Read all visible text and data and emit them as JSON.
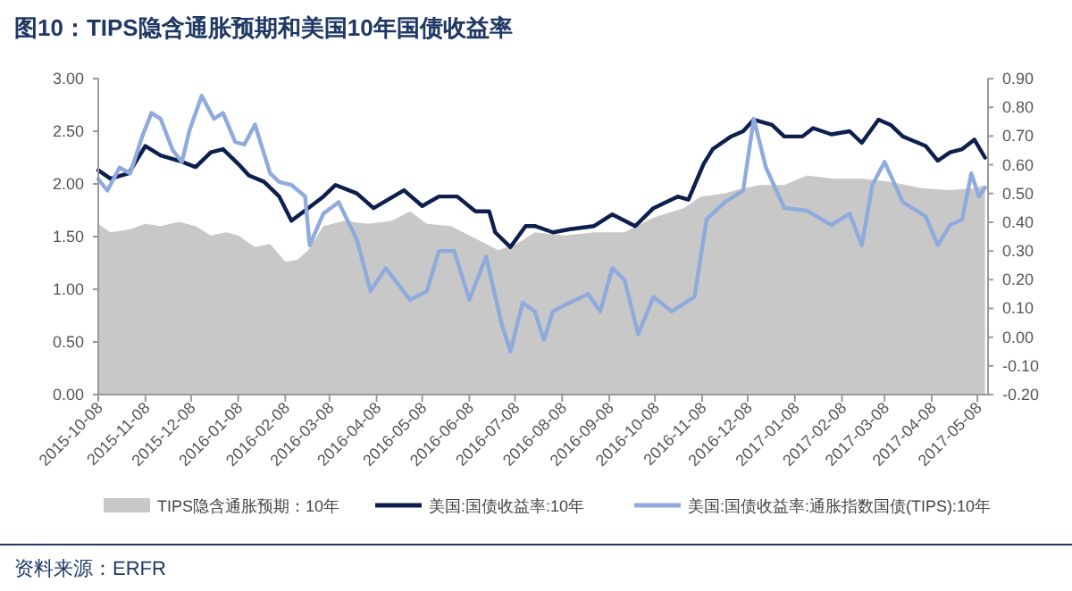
{
  "chart_data": {
    "type": "line",
    "title": "图10：TIPS隐含通胀预期和美国10年国债收益率",
    "xlim": [
      "2015-10-08",
      "2017-05-15"
    ],
    "xticks": [
      "2015-10-08",
      "2015-11-08",
      "2015-12-08",
      "2016-01-08",
      "2016-02-08",
      "2016-03-08",
      "2016-04-08",
      "2016-05-08",
      "2016-06-08",
      "2016-07-08",
      "2016-08-08",
      "2016-09-08",
      "2016-10-08",
      "2016-11-08",
      "2016-12-08",
      "2017-01-08",
      "2017-02-08",
      "2017-03-08",
      "2017-04-08",
      "2017-05-08"
    ],
    "ylim": [
      0,
      3
    ],
    "yticks": [
      {
        "value": 0,
        "label": "0.00"
      },
      {
        "value": 0.5,
        "label": "0.50"
      },
      {
        "value": 1,
        "label": "1.00"
      },
      {
        "value": 1.5,
        "label": "1.50"
      },
      {
        "value": 2,
        "label": "2.00"
      },
      {
        "value": 2.5,
        "label": "2.50"
      },
      {
        "value": 3,
        "label": "3.00"
      }
    ],
    "y2lim": [
      -0.2,
      0.9
    ],
    "y2ticks": [
      {
        "value": -0.2,
        "label": "-0.20"
      },
      {
        "value": -0.1,
        "label": "-0.10"
      },
      {
        "value": 0,
        "label": "0.00"
      },
      {
        "value": 0.1,
        "label": "0.10"
      },
      {
        "value": 0.2,
        "label": "0.20"
      },
      {
        "value": 0.3,
        "label": "0.30"
      },
      {
        "value": 0.4,
        "label": "0.40"
      },
      {
        "value": 0.5,
        "label": "0.50"
      },
      {
        "value": 0.6,
        "label": "0.60"
      },
      {
        "value": 0.7,
        "label": "0.70"
      },
      {
        "value": 0.8,
        "label": "0.80"
      },
      {
        "value": 0.9,
        "label": "0.90"
      }
    ],
    "legend": "bottom",
    "grid": false,
    "series": [
      {
        "name": "TIPS隐含通胀预期：10年",
        "type": "area",
        "color": "#c8c8c8",
        "x": [
          "2015-10-08",
          "2015-10-16",
          "2015-10-29",
          "2015-11-08",
          "2015-11-18",
          "2015-11-30",
          "2015-12-11",
          "2015-12-21",
          "2015-12-31",
          "2016-01-08",
          "2016-01-19",
          "2016-01-29",
          "2016-02-08",
          "2016-02-16",
          "2016-02-23",
          "2016-03-04",
          "2016-03-18",
          "2016-04-02",
          "2016-04-18",
          "2016-04-30",
          "2016-05-11",
          "2016-05-27",
          "2016-06-12",
          "2016-06-27",
          "2016-07-09",
          "2016-07-21",
          "2016-08-10",
          "2016-08-29",
          "2016-09-18",
          "2016-10-07",
          "2016-10-27",
          "2016-11-07",
          "2016-11-23",
          "2016-12-05",
          "2016-12-16",
          "2017-01-01",
          "2017-01-16",
          "2017-02-01",
          "2017-02-21",
          "2017-03-12",
          "2017-04-01",
          "2017-04-20",
          "2017-05-06",
          "2017-05-13"
        ],
        "values": [
          1.62,
          1.54,
          1.57,
          1.62,
          1.6,
          1.64,
          1.6,
          1.51,
          1.54,
          1.51,
          1.4,
          1.43,
          1.26,
          1.28,
          1.37,
          1.6,
          1.65,
          1.62,
          1.65,
          1.74,
          1.62,
          1.6,
          1.48,
          1.37,
          1.43,
          1.54,
          1.51,
          1.54,
          1.54,
          1.68,
          1.77,
          1.88,
          1.91,
          1.96,
          1.99,
          1.99,
          2.08,
          2.05,
          2.05,
          2.02,
          1.96,
          1.94,
          1.96,
          1.99
        ]
      },
      {
        "name": "美国:国债收益率:10年",
        "color": "#0d1f4f",
        "x": [
          "2015-10-08",
          "2015-10-16",
          "2015-10-28",
          "2015-11-08",
          "2015-11-18",
          "2015-11-30",
          "2015-12-11",
          "2015-12-21",
          "2015-12-29",
          "2016-01-08",
          "2016-01-15",
          "2016-01-25",
          "2016-02-04",
          "2016-02-12",
          "2016-02-23",
          "2016-03-04",
          "2016-03-12",
          "2016-03-26",
          "2016-04-06",
          "2016-04-26",
          "2016-05-08",
          "2016-05-19",
          "2016-05-31",
          "2016-06-12",
          "2016-06-21",
          "2016-06-25",
          "2016-07-05",
          "2016-07-15",
          "2016-07-21",
          "2016-08-02",
          "2016-08-13",
          "2016-08-29",
          "2016-09-10",
          "2016-09-25",
          "2016-10-07",
          "2016-10-23",
          "2016-10-30",
          "2016-11-09",
          "2016-11-15",
          "2016-11-27",
          "2016-12-05",
          "2016-12-12",
          "2016-12-24",
          "2017-01-01",
          "2017-01-13",
          "2017-01-20",
          "2017-02-01",
          "2017-02-13",
          "2017-02-21",
          "2017-03-04",
          "2017-03-12",
          "2017-03-20",
          "2017-04-04",
          "2017-04-12",
          "2017-04-20",
          "2017-04-28",
          "2017-05-06",
          "2017-05-13"
        ],
        "values": [
          2.13,
          2.05,
          2.1,
          2.36,
          2.27,
          2.22,
          2.16,
          2.3,
          2.33,
          2.19,
          2.08,
          2.02,
          1.88,
          1.65,
          1.77,
          1.88,
          1.99,
          1.91,
          1.77,
          1.94,
          1.79,
          1.88,
          1.88,
          1.74,
          1.74,
          1.54,
          1.4,
          1.6,
          1.6,
          1.54,
          1.57,
          1.6,
          1.71,
          1.6,
          1.77,
          1.88,
          1.85,
          2.19,
          2.33,
          2.45,
          2.5,
          2.61,
          2.56,
          2.45,
          2.45,
          2.53,
          2.47,
          2.5,
          2.39,
          2.61,
          2.56,
          2.45,
          2.36,
          2.22,
          2.3,
          2.33,
          2.42,
          2.25
        ]
      },
      {
        "name": "美国:国债收益率:通胀指数国债(TIPS):10年",
        "axis": "y2",
        "color": "#8faadc",
        "x": [
          "2015-10-08",
          "2015-10-14",
          "2015-10-22",
          "2015-10-29",
          "2015-11-06",
          "2015-11-12",
          "2015-11-18",
          "2015-11-26",
          "2015-12-02",
          "2015-12-07",
          "2015-12-15",
          "2015-12-23",
          "2015-12-29",
          "2016-01-06",
          "2016-01-12",
          "2016-01-19",
          "2016-01-29",
          "2016-02-04",
          "2016-02-12",
          "2016-02-21",
          "2016-02-24",
          "2016-03-04",
          "2016-03-14",
          "2016-03-26",
          "2016-04-04",
          "2016-04-14",
          "2016-04-30",
          "2016-05-11",
          "2016-05-19",
          "2016-05-29",
          "2016-06-08",
          "2016-06-19",
          "2016-06-29",
          "2016-07-05",
          "2016-07-13",
          "2016-07-21",
          "2016-07-27",
          "2016-08-02",
          "2016-08-13",
          "2016-08-25",
          "2016-09-02",
          "2016-09-10",
          "2016-09-18",
          "2016-09-27",
          "2016-10-07",
          "2016-10-19",
          "2016-11-03",
          "2016-11-11",
          "2016-11-23",
          "2016-12-05",
          "2016-12-12",
          "2016-12-20",
          "2017-01-01",
          "2017-01-16",
          "2017-02-01",
          "2017-02-13",
          "2017-02-21",
          "2017-02-28",
          "2017-03-08",
          "2017-03-20",
          "2017-04-04",
          "2017-04-12",
          "2017-04-20",
          "2017-04-28",
          "2017-05-04",
          "2017-05-09",
          "2017-05-13"
        ],
        "values": [
          0.55,
          0.51,
          0.59,
          0.57,
          0.7,
          0.78,
          0.76,
          0.65,
          0.61,
          0.72,
          0.84,
          0.76,
          0.78,
          0.68,
          0.67,
          0.74,
          0.57,
          0.54,
          0.53,
          0.49,
          0.32,
          0.43,
          0.47,
          0.34,
          0.16,
          0.24,
          0.13,
          0.16,
          0.3,
          0.3,
          0.13,
          0.28,
          0.05,
          -0.05,
          0.12,
          0.09,
          -0.01,
          0.09,
          0.12,
          0.15,
          0.09,
          0.24,
          0.2,
          0.01,
          0.14,
          0.09,
          0.14,
          0.41,
          0.47,
          0.51,
          0.76,
          0.59,
          0.45,
          0.44,
          0.39,
          0.43,
          0.32,
          0.53,
          0.61,
          0.47,
          0.42,
          0.32,
          0.39,
          0.41,
          0.57,
          0.49,
          0.52
        ]
      }
    ],
    "annotations": [
      "资料来源：ERFR"
    ]
  }
}
